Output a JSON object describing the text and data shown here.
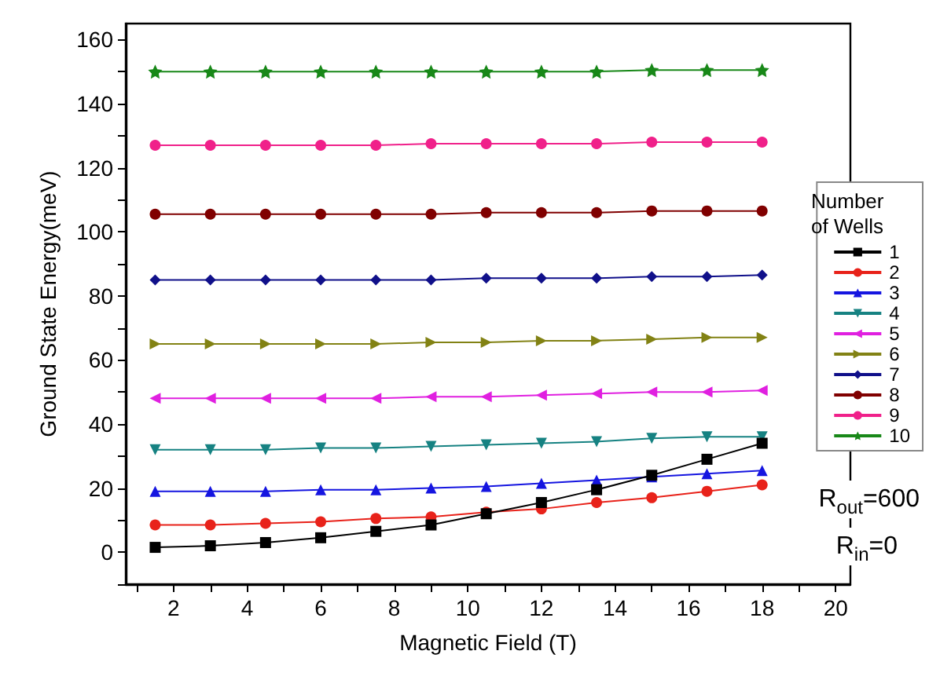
{
  "chart_data": {
    "type": "line",
    "xlabel": "Magnetic Field (T)",
    "ylabel": "Ground State Energy(meV)",
    "legend_title": "Number of Wells",
    "x": [
      1.5,
      3,
      4.5,
      6,
      7.5,
      9,
      10.5,
      12,
      13.5,
      15,
      16.5,
      18
    ],
    "xlim": [
      0.7,
      20.4
    ],
    "ylim": [
      -10,
      165
    ],
    "xticks": [
      {
        "value": 1,
        "label": null
      },
      2,
      {
        "value": 3,
        "label": null
      },
      4,
      {
        "value": 5,
        "label": null
      },
      6,
      {
        "value": 7,
        "label": null
      },
      8,
      {
        "value": 9,
        "label": null
      },
      10,
      {
        "value": 11,
        "label": null
      },
      12,
      {
        "value": 13,
        "label": null
      },
      14,
      {
        "value": 15,
        "label": null
      },
      16,
      {
        "value": 17,
        "label": null
      },
      18,
      {
        "value": 19,
        "label": null
      },
      20
    ],
    "yticks": [
      {
        "value": -10,
        "label": null
      },
      0,
      {
        "value": 10,
        "label": null
      },
      20,
      {
        "value": 30,
        "label": null
      },
      40,
      {
        "value": 50,
        "label": null
      },
      60,
      {
        "value": 70,
        "label": null
      },
      80,
      {
        "value": 90,
        "label": null
      },
      100,
      {
        "value": 110,
        "label": null
      },
      120,
      {
        "value": 130,
        "label": null
      },
      140,
      {
        "value": 150,
        "label": null
      },
      160
    ],
    "grid": false,
    "legend": "right",
    "annotations": [
      "R$_{out}$=600",
      "R$_{in}$=0"
    ],
    "series": [
      {
        "name": "1",
        "color": "#000000",
        "marker": "square",
        "values": [
          1.5,
          2,
          3,
          4.5,
          6.5,
          8.5,
          12,
          15.5,
          19.5,
          24,
          29,
          34
        ]
      },
      {
        "name": "2",
        "color": "#e8221a",
        "marker": "circle",
        "values": [
          8.5,
          8.5,
          9,
          9.5,
          10.5,
          11,
          12.5,
          13.5,
          15.5,
          17,
          19,
          21
        ]
      },
      {
        "name": "3",
        "color": "#1515e0",
        "marker": "triangle",
        "values": [
          19,
          19,
          19,
          19.5,
          19.5,
          20,
          20.5,
          21.5,
          22.5,
          23.5,
          24.5,
          25.5
        ]
      },
      {
        "name": "4",
        "color": "#168282",
        "marker": "triangle-down",
        "values": [
          32,
          32,
          32,
          32.5,
          32.5,
          33,
          33.5,
          34,
          34.5,
          35.5,
          36,
          36
        ]
      },
      {
        "name": "5",
        "color": "#e020e0",
        "marker": "triangle-left",
        "values": [
          48,
          48,
          48,
          48,
          48,
          48.5,
          48.5,
          49,
          49.5,
          50,
          50,
          50.5
        ]
      },
      {
        "name": "6",
        "color": "#828214",
        "marker": "triangle-right",
        "values": [
          65,
          65,
          65,
          65,
          65,
          65.5,
          65.5,
          66,
          66,
          66.5,
          67,
          67
        ]
      },
      {
        "name": "7",
        "color": "#10108a",
        "marker": "diamond",
        "values": [
          85,
          85,
          85,
          85,
          85,
          85,
          85.5,
          85.5,
          85.5,
          86,
          86,
          86.5
        ]
      },
      {
        "name": "8",
        "color": "#800000",
        "marker": "circle",
        "values": [
          105.5,
          105.5,
          105.5,
          105.5,
          105.5,
          105.5,
          106,
          106,
          106,
          106.5,
          106.5,
          106.5
        ]
      },
      {
        "name": "9",
        "color": "#f0208a",
        "marker": "circle",
        "values": [
          127,
          127,
          127,
          127,
          127,
          127.5,
          127.5,
          127.5,
          127.5,
          128,
          128,
          128
        ]
      },
      {
        "name": "10",
        "color": "#188818",
        "marker": "star",
        "values": [
          150,
          150,
          150,
          150,
          150,
          150,
          150,
          150,
          150,
          150.5,
          150.5,
          150.5
        ]
      }
    ]
  }
}
